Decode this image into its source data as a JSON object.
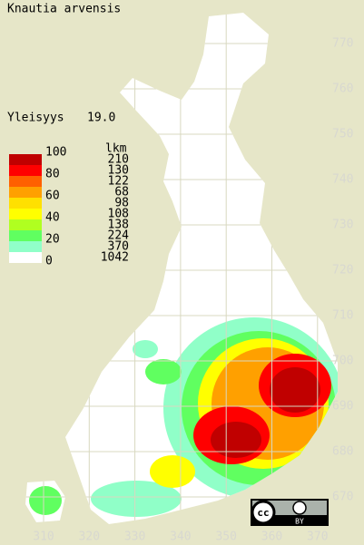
{
  "title": "Knautia arvensis",
  "frequency": {
    "label": "Yleisyys",
    "value": "19.0"
  },
  "legend": {
    "scale_labels": [
      "100",
      "80",
      "60",
      "40",
      "20",
      "0"
    ],
    "count_header": "lkm",
    "counts": [
      "210",
      "130",
      "122",
      "68",
      "98",
      "108",
      "138",
      "224",
      "370",
      "1042"
    ],
    "colors": [
      "#c00000",
      "#ff0000",
      "#ff6000",
      "#ffa000",
      "#ffe000",
      "#ffff00",
      "#b0ff20",
      "#60ff60",
      "#90ffc8",
      "#ffffff"
    ]
  },
  "grid": {
    "northing": [
      770,
      760,
      750,
      740,
      730,
      720,
      710,
      700,
      690,
      680,
      670
    ],
    "easting": [
      310,
      320,
      330,
      340,
      350,
      360,
      370
    ]
  },
  "license": {
    "cc": "cc",
    "by": "BY"
  }
}
